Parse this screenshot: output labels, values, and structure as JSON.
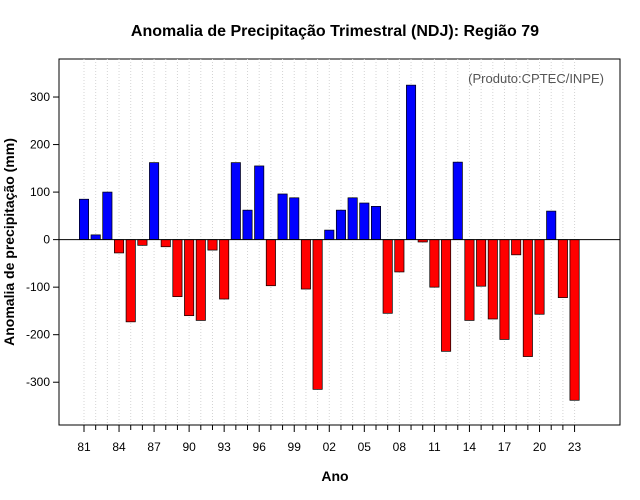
{
  "chart_data": {
    "type": "bar",
    "title": "Anomalia de Precipitação Trimestral (NDJ): Região 79",
    "xlabel": "Ano",
    "ylabel": "Anomalia de precipitação (mm)",
    "annotation": "(Produto:CPTEC/INPE)",
    "ylim": [
      -390,
      380
    ],
    "y_ticks": [
      -300,
      -200,
      -100,
      0,
      100,
      200,
      300
    ],
    "y_tick_labels": [
      "-300",
      "-200",
      "-100",
      "0",
      "100",
      "200",
      "300"
    ],
    "x_tick_labels": [
      "81",
      "84",
      "87",
      "90",
      "93",
      "96",
      "99",
      "02",
      "05",
      "08",
      "11",
      "14",
      "17",
      "20",
      "23"
    ],
    "positive_color": "#0000ff",
    "negative_color": "#ff0000",
    "categories": [
      "81",
      "82",
      "83",
      "84",
      "85",
      "86",
      "87",
      "88",
      "89",
      "90",
      "91",
      "92",
      "93",
      "94",
      "95",
      "96",
      "97",
      "98",
      "99",
      "00",
      "01",
      "02",
      "03",
      "04",
      "05",
      "06",
      "07",
      "08",
      "09",
      "10",
      "11",
      "12",
      "13",
      "14",
      "15",
      "16",
      "17",
      "18",
      "19",
      "20",
      "21",
      "22",
      "23"
    ],
    "values": [
      85,
      10,
      100,
      -28,
      -173,
      -12,
      162,
      -15,
      -120,
      -160,
      -170,
      -22,
      -125,
      162,
      62,
      155,
      -97,
      96,
      88,
      -104,
      -315,
      20,
      62,
      88,
      77,
      70,
      -155,
      -68,
      325,
      -5,
      -100,
      -235,
      163,
      -170,
      -98,
      -167,
      -210,
      -32,
      -246,
      -157,
      60,
      -122,
      -338
    ]
  }
}
